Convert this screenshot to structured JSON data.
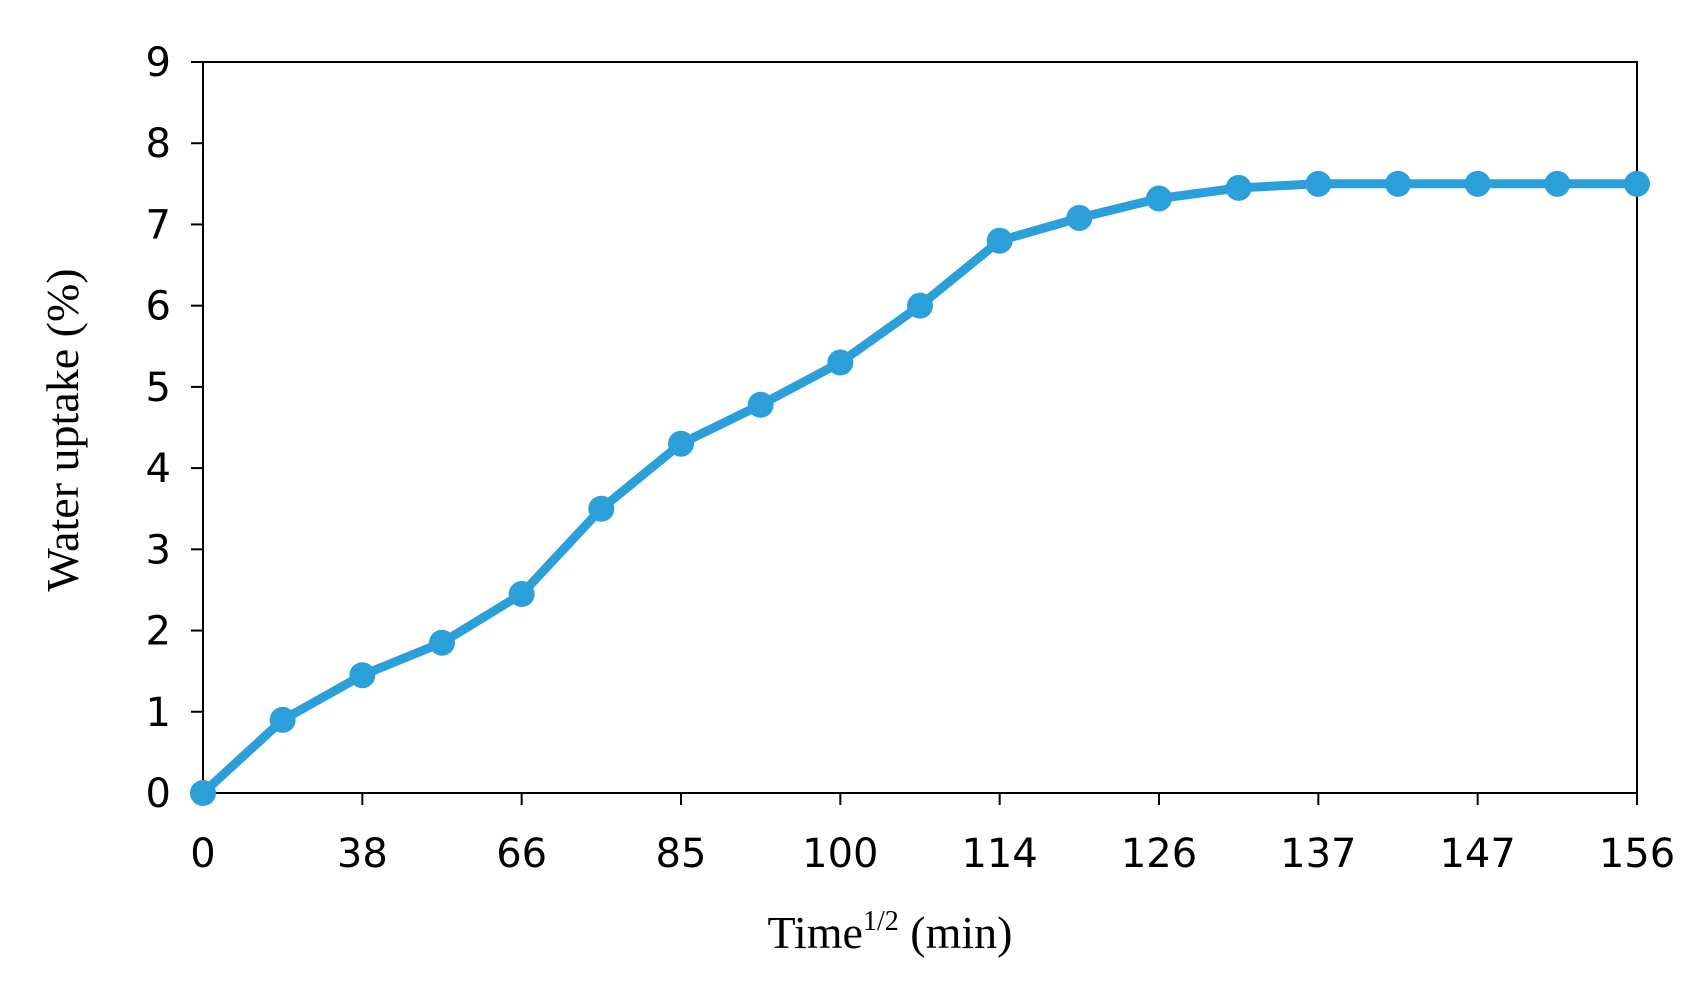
{
  "chart_data": {
    "type": "line",
    "title": "",
    "xlabel": "Time",
    "xlabel_superscript": "1/2",
    "xlabel_suffix": " (min)",
    "ylabel": "Water uptake (%)",
    "x_tick_labels": [
      "0",
      "38",
      "66",
      "85",
      "100",
      "114",
      "126",
      "137",
      "147",
      "156"
    ],
    "ylim": [
      0,
      9
    ],
    "y_ticks": [
      0,
      1,
      2,
      3,
      4,
      5,
      6,
      7,
      8,
      9
    ],
    "grid": false,
    "legend": "none",
    "series": [
      {
        "color": "#2b9fd9",
        "values": [
          0,
          0.9,
          1.45,
          1.85,
          2.45,
          3.5,
          4.3,
          4.78,
          5.3,
          6.0,
          6.8,
          7.08,
          7.32,
          7.45,
          7.5,
          7.5,
          7.5,
          7.5,
          7.5
        ]
      }
    ]
  }
}
